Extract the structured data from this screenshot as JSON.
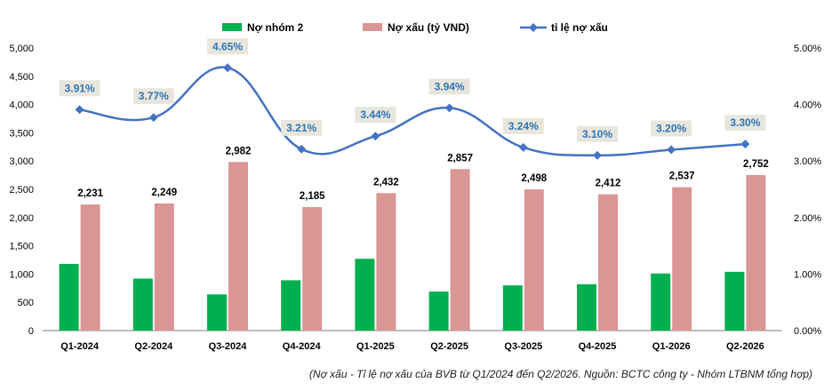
{
  "chart_data": {
    "type": "bar",
    "categories": [
      "Q1-2024",
      "Q2-2024",
      "Q3-2024",
      "Q4-2024",
      "Q1-2025",
      "Q2-2025",
      "Q3-2025",
      "Q4-2025",
      "Q1-2026",
      "Q2-2026"
    ],
    "series": [
      {
        "name": "Nợ nhóm 2",
        "type": "bar",
        "axis": "left",
        "color": "#00b050",
        "values": [
          1180,
          920,
          640,
          890,
          1270,
          690,
          800,
          820,
          1010,
          1040
        ]
      },
      {
        "name": "Nợ xấu (tỷ VND)",
        "type": "bar",
        "axis": "left",
        "color": "#d99694",
        "values": [
          2231,
          2249,
          2982,
          2185,
          2432,
          2857,
          2498,
          2412,
          2537,
          2752
        ],
        "labels": [
          "2,231",
          "2,249",
          "2,982",
          "2,185",
          "2,432",
          "2,857",
          "2,498",
          "2,412",
          "2,537",
          "2,752"
        ]
      },
      {
        "name": "tỉ lệ nợ xấu",
        "type": "line",
        "axis": "right",
        "color": "#4472c4",
        "values": [
          3.91,
          3.77,
          4.65,
          3.21,
          3.44,
          3.94,
          3.24,
          3.1,
          3.2,
          3.3
        ],
        "labels": [
          "3.91%",
          "3.77%",
          "4.65%",
          "3.21%",
          "3.44%",
          "3.94%",
          "3.24%",
          "3.10%",
          "3.20%",
          "3.30%"
        ]
      }
    ],
    "y_left": {
      "min": 0,
      "max": 5000,
      "ticks": [
        "0",
        "500",
        "1,000",
        "1,500",
        "2,000",
        "2,500",
        "3,000",
        "3,500",
        "4,000",
        "4,500",
        "5,000"
      ]
    },
    "y_right": {
      "min": 0,
      "max": 5,
      "ticks": [
        "0.00%",
        "1.00%",
        "2.00%",
        "3.00%",
        "4.00%",
        "5.00%"
      ]
    },
    "legend_position": "top-center",
    "grid": false,
    "caption": "(Nợ xấu - Tỉ lệ nợ xấu của BVB từ Q1/2024 đến Q2/2026. Nguồn: BCTC công ty - Nhóm LTBNM tổng hợp)"
  }
}
